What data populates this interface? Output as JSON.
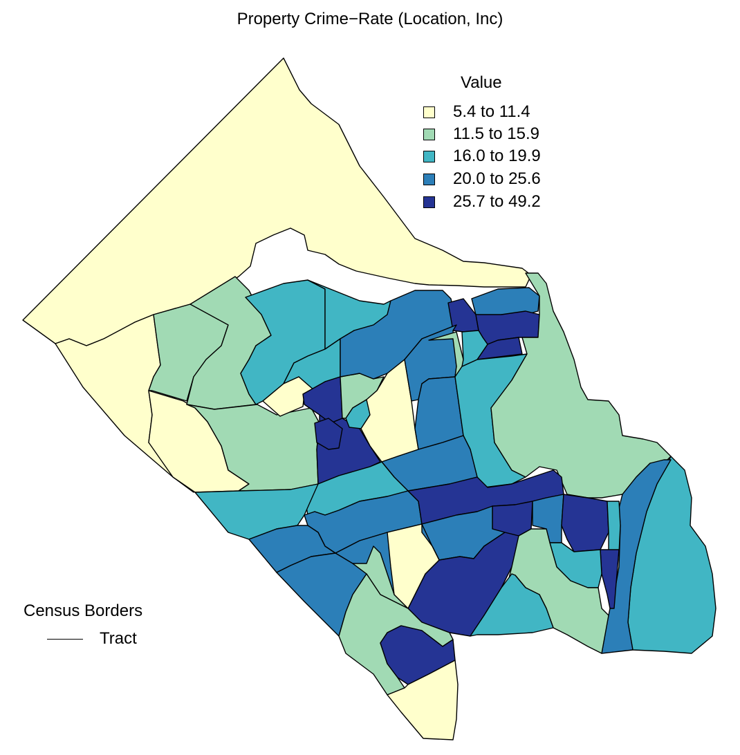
{
  "title": "Property Crime−Rate (Location, Inc)",
  "legend": {
    "title": "Value",
    "classes": [
      {
        "label": "5.4 to 11.4",
        "color": "#ffffcc"
      },
      {
        "label": "11.5 to 15.9",
        "color": "#a1dab4"
      },
      {
        "label": "16.0 to 19.9",
        "color": "#41b6c4"
      },
      {
        "label": "20.0 to 25.6",
        "color": "#2c7fb8"
      },
      {
        "label": "25.7 to 49.2",
        "color": "#253494"
      }
    ]
  },
  "borders_legend": {
    "title": "Census Borders",
    "items": [
      {
        "label": "Tract",
        "style": "solid-line"
      }
    ]
  }
}
